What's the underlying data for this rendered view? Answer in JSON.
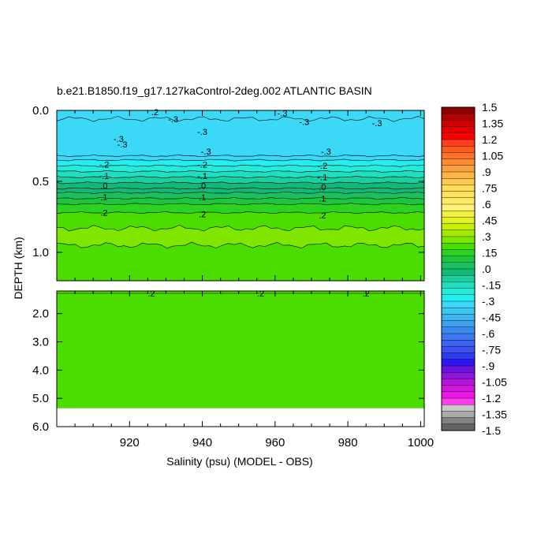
{
  "chart_data": {
    "type": "contour",
    "title": "b.e21.B1850.f19_g17.127kaControl-2deg.002 ATLANTIC BASIN",
    "xlabel": "Salinity (psu) (MODEL - OBS)",
    "ylabel": "DEPTH (km)",
    "xlim": [
      900,
      1001
    ],
    "x_ticks": [
      920,
      940,
      960,
      980,
      1000
    ],
    "upper_panel": {
      "ylim": [
        0.0,
        1.2
      ],
      "y_ticks": [
        "0.0",
        "0.5",
        "1.0"
      ],
      "layers": [
        {
          "top": 0.0,
          "bottom": 0.06,
          "value": -0.35
        },
        {
          "top": 0.06,
          "bottom": 0.32,
          "value": -0.35
        },
        {
          "top": 0.32,
          "bottom": 0.35,
          "value": -0.3
        },
        {
          "top": 0.35,
          "bottom": 0.39,
          "value": -0.25
        },
        {
          "top": 0.39,
          "bottom": 0.43,
          "value": -0.2
        },
        {
          "top": 0.43,
          "bottom": 0.47,
          "value": -0.15
        },
        {
          "top": 0.47,
          "bottom": 0.51,
          "value": -0.1
        },
        {
          "top": 0.51,
          "bottom": 0.55,
          "value": -0.05
        },
        {
          "top": 0.55,
          "bottom": 0.58,
          "value": 0.0
        },
        {
          "top": 0.58,
          "bottom": 0.62,
          "value": 0.05
        },
        {
          "top": 0.62,
          "bottom": 0.66,
          "value": 0.1
        },
        {
          "top": 0.66,
          "bottom": 0.72,
          "value": 0.15
        },
        {
          "top": 0.72,
          "bottom": 0.83,
          "value": 0.2
        },
        {
          "top": 0.83,
          "bottom": 0.95,
          "value": 0.25
        },
        {
          "top": 0.95,
          "bottom": 1.2,
          "value": 0.2
        }
      ],
      "contour_labels": [
        {
          "x": 927,
          "depth": 0.01,
          "text": ".2"
        },
        {
          "x": 962,
          "depth": 0.02,
          "text": "-.3"
        },
        {
          "x": 932,
          "depth": 0.06,
          "text": "-.3"
        },
        {
          "x": 968,
          "depth": 0.08,
          "text": "-.3"
        },
        {
          "x": 988,
          "depth": 0.09,
          "text": "-.3"
        },
        {
          "x": 940,
          "depth": 0.15,
          "text": "-.3"
        },
        {
          "x": 917,
          "depth": 0.2,
          "text": "-.3"
        },
        {
          "x": 918,
          "depth": 0.24,
          "text": "-.3"
        },
        {
          "x": 941,
          "depth": 0.29,
          "text": "-.3"
        },
        {
          "x": 974,
          "depth": 0.29,
          "text": "-.3"
        },
        {
          "x": 913,
          "depth": 0.38,
          "text": "-.2"
        },
        {
          "x": 940,
          "depth": 0.38,
          "text": "-.2"
        },
        {
          "x": 973,
          "depth": 0.39,
          "text": "-.2"
        },
        {
          "x": 913,
          "depth": 0.46,
          "text": "-.1"
        },
        {
          "x": 940,
          "depth": 0.46,
          "text": "-.1"
        },
        {
          "x": 973,
          "depth": 0.47,
          "text": "-.1"
        },
        {
          "x": 913,
          "depth": 0.53,
          "text": ".0"
        },
        {
          "x": 940,
          "depth": 0.53,
          "text": ".0"
        },
        {
          "x": 973,
          "depth": 0.54,
          "text": ".0"
        },
        {
          "x": 913,
          "depth": 0.61,
          "text": ".1"
        },
        {
          "x": 940,
          "depth": 0.61,
          "text": ".1"
        },
        {
          "x": 973,
          "depth": 0.62,
          "text": ".1"
        },
        {
          "x": 913,
          "depth": 0.72,
          "text": ".2"
        },
        {
          "x": 940,
          "depth": 0.73,
          "text": ".2"
        },
        {
          "x": 973,
          "depth": 0.74,
          "text": ".2"
        }
      ]
    },
    "lower_panel": {
      "ylim": [
        1.2,
        6.0
      ],
      "y_ticks": [
        "2.0",
        "3.0",
        "4.0",
        "5.0",
        "6.0"
      ],
      "y_tick_values": [
        2.0,
        3.0,
        4.0,
        5.0,
        6.0
      ],
      "fill_value": 0.2,
      "data_bottom_depth": 5.35,
      "contour_labels": [
        {
          "x": 926,
          "depth": 1.26,
          "text": ".2"
        },
        {
          "x": 956,
          "depth": 1.26,
          "text": ".2"
        },
        {
          "x": 985,
          "depth": 1.26,
          "text": ".2"
        }
      ]
    },
    "colorbar": {
      "labels": [
        "1.5",
        "1.35",
        "1.2",
        "1.05",
        ".9",
        ".75",
        ".6",
        ".45",
        ".3",
        ".15",
        ".0",
        "-.15",
        "-.3",
        "-.45",
        "-.6",
        "-.75",
        "-.9",
        "-1.05",
        "-1.2",
        "-1.35",
        "-1.5"
      ],
      "colors_top_to_bottom": [
        "#8c0000",
        "#b30000",
        "#d10000",
        "#e80000",
        "#ff0000",
        "#ff3d1f",
        "#ff5a1e",
        "#ff7424",
        "#ff8c2e",
        "#f7a23c",
        "#ffb445",
        "#ffc850",
        "#ffdc5a",
        "#ffe25f",
        "#ffea64",
        "#fff278",
        "#f2f23c",
        "#e1f21e",
        "#c8f000",
        "#a4ea00",
        "#7fe600",
        "#4bdc00",
        "#2bd320",
        "#1bc83d",
        "#18c060",
        "#13b878",
        "#1ad0a0",
        "#1de0c0",
        "#22ecdc",
        "#22f0f0",
        "#3cd8f8",
        "#3cc8f4",
        "#3cb4f0",
        "#3ca0ee",
        "#3c8cf0",
        "#3c78f0",
        "#3c64f0",
        "#3c50f0",
        "#2d3cf0",
        "#3214f0",
        "#6414dc",
        "#8c14dc",
        "#b414dc",
        "#d214dc",
        "#f014e6",
        "#ff3cf0",
        "#c8c8c8",
        "#aaaaaa",
        "#828282",
        "#646464"
      ]
    }
  }
}
